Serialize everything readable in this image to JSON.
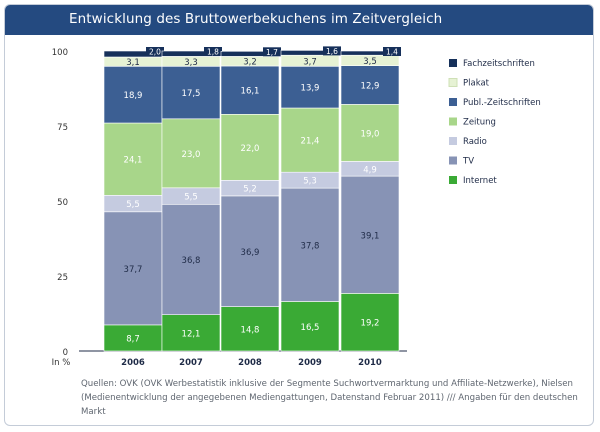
{
  "header": {
    "title": "Entwicklung des Bruttowerbekuchens im Zeitvergleich"
  },
  "footer": {
    "sources": "Quellen: OVK (OVK Werbestatistik inklusive der Segmente Suchwortvermarktung und Affiliate-Netzwerke), Nielsen (Medienentwicklung der angegebenen Mediengattungen, Datenstand Februar 2011) /// Angaben für den deutschen Markt"
  },
  "chart_data": {
    "type": "bar",
    "stacked": true,
    "x_axis_unit_label": "In %",
    "categories": [
      "2006",
      "2007",
      "2008",
      "2009",
      "2010"
    ],
    "ylim": [
      0,
      100
    ],
    "yticks": [
      0,
      25,
      50,
      75,
      100
    ],
    "grid": false,
    "legend_position": "right",
    "series": [
      {
        "name": "Internet",
        "color": "#3aaa35",
        "label_color": "#ffffff",
        "values": [
          8.7,
          12.1,
          14.8,
          16.5,
          19.2
        ]
      },
      {
        "name": "TV",
        "color": "#8793b5",
        "label_color": "#1f2b47",
        "values": [
          37.7,
          36.8,
          36.9,
          37.8,
          39.1
        ]
      },
      {
        "name": "Radio",
        "color": "#c5cbe0",
        "label_color": "#ffffff",
        "values": [
          5.5,
          5.5,
          5.2,
          5.3,
          4.9
        ]
      },
      {
        "name": "Zeitung",
        "color": "#a8d68a",
        "label_color": "#ffffff",
        "values": [
          24.1,
          23.0,
          22.0,
          21.4,
          19.0
        ]
      },
      {
        "name": "Publ.-Zeitschriften",
        "color": "#3c5f93",
        "label_color": "#ffffff",
        "values": [
          18.9,
          17.5,
          16.1,
          13.9,
          12.9
        ]
      },
      {
        "name": "Plakat",
        "color": "#e6f2d4",
        "label_color": "#1f2b47",
        "values": [
          3.1,
          3.3,
          3.2,
          3.7,
          3.5
        ]
      },
      {
        "name": "Fachzeitschriften",
        "color": "#16305a",
        "label_color": "#ffffff",
        "values": [
          2.0,
          1.8,
          1.7,
          1.6,
          1.4
        ]
      }
    ],
    "value_labels": {
      "Internet": [
        "8,7",
        "12,1",
        "14,8",
        "16,5",
        "19,2"
      ],
      "TV": [
        "37,7",
        "36,8",
        "36,9",
        "37,8",
        "39,1"
      ],
      "Radio": [
        "5,5",
        "5,5",
        "5,2",
        "5,3",
        "4,9"
      ],
      "Zeitung": [
        "24,1",
        "23,0",
        "22,0",
        "21,4",
        "19,0"
      ],
      "Publ.-Zeitschriften": [
        "18,9",
        "17,5",
        "16,1",
        "13,9",
        "12,9"
      ],
      "Plakat": [
        "3,1",
        "3,3",
        "3,2",
        "3,7",
        "3,5"
      ],
      "Fachzeitschriften": [
        "2,0",
        "1,8",
        "1,7",
        "1,6",
        "1,4"
      ]
    },
    "legend_order": [
      "Fachzeitschriften",
      "Plakat",
      "Publ.-Zeitschriften",
      "Zeitung",
      "Radio",
      "TV",
      "Internet"
    ]
  }
}
